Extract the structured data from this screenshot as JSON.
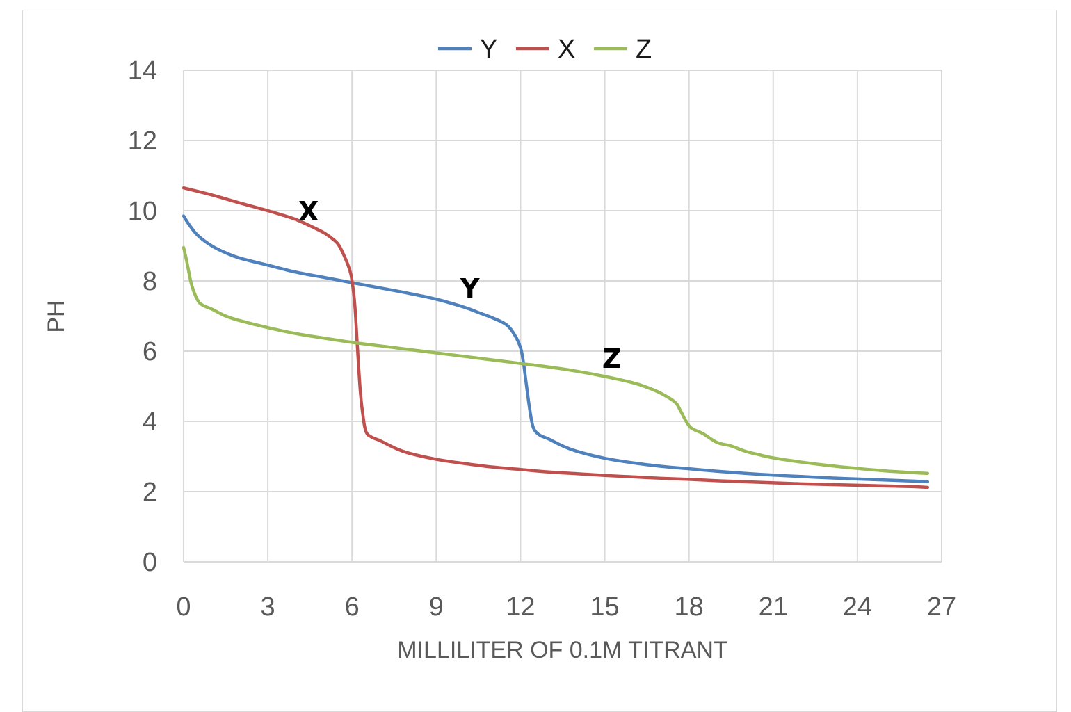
{
  "chart_data": {
    "type": "line",
    "title": "",
    "xlabel": "MILLILITER OF 0.1M TITRANT",
    "ylabel": "PH",
    "xlim": [
      0,
      27
    ],
    "ylim": [
      0,
      14
    ],
    "xticks": [
      0,
      3,
      6,
      9,
      12,
      15,
      18,
      21,
      24,
      27
    ],
    "yticks": [
      0,
      2,
      4,
      6,
      8,
      10,
      12,
      14
    ],
    "grid": true,
    "legend_position": "top-center",
    "series": [
      {
        "name": "Y",
        "color": "#4f81bd",
        "points": [
          [
            0,
            9.85
          ],
          [
            0.2,
            9.6
          ],
          [
            0.5,
            9.3
          ],
          [
            1,
            9.0
          ],
          [
            1.5,
            8.8
          ],
          [
            2,
            8.65
          ],
          [
            3,
            8.45
          ],
          [
            4,
            8.25
          ],
          [
            5,
            8.1
          ],
          [
            6,
            7.95
          ],
          [
            7,
            7.8
          ],
          [
            8,
            7.65
          ],
          [
            9,
            7.48
          ],
          [
            10,
            7.25
          ],
          [
            10.5,
            7.1
          ],
          [
            11,
            6.95
          ],
          [
            11.5,
            6.75
          ],
          [
            11.8,
            6.45
          ],
          [
            12,
            6.1
          ],
          [
            12.1,
            5.7
          ],
          [
            12.2,
            5.1
          ],
          [
            12.3,
            4.5
          ],
          [
            12.4,
            4.0
          ],
          [
            12.5,
            3.75
          ],
          [
            12.7,
            3.6
          ],
          [
            13,
            3.5
          ],
          [
            13.5,
            3.3
          ],
          [
            14,
            3.15
          ],
          [
            15,
            2.95
          ],
          [
            16,
            2.82
          ],
          [
            17,
            2.72
          ],
          [
            18,
            2.65
          ],
          [
            19,
            2.58
          ],
          [
            20,
            2.52
          ],
          [
            21,
            2.47
          ],
          [
            22,
            2.43
          ],
          [
            23,
            2.39
          ],
          [
            24,
            2.36
          ],
          [
            25,
            2.33
          ],
          [
            26,
            2.3
          ],
          [
            26.5,
            2.28
          ]
        ]
      },
      {
        "name": "X",
        "color": "#c0504d",
        "points": [
          [
            0,
            10.65
          ],
          [
            1,
            10.45
          ],
          [
            2,
            10.22
          ],
          [
            3,
            10.0
          ],
          [
            3.5,
            9.88
          ],
          [
            4,
            9.75
          ],
          [
            4.5,
            9.57
          ],
          [
            5,
            9.37
          ],
          [
            5.3,
            9.2
          ],
          [
            5.5,
            9.05
          ],
          [
            5.7,
            8.75
          ],
          [
            5.9,
            8.35
          ],
          [
            6.0,
            8.0
          ],
          [
            6.1,
            7.3
          ],
          [
            6.2,
            6.0
          ],
          [
            6.3,
            4.8
          ],
          [
            6.4,
            4.1
          ],
          [
            6.5,
            3.7
          ],
          [
            6.7,
            3.55
          ],
          [
            7,
            3.45
          ],
          [
            7.5,
            3.25
          ],
          [
            8,
            3.1
          ],
          [
            9,
            2.92
          ],
          [
            10,
            2.8
          ],
          [
            11,
            2.7
          ],
          [
            12,
            2.63
          ],
          [
            13,
            2.56
          ],
          [
            14,
            2.51
          ],
          [
            15,
            2.46
          ],
          [
            16,
            2.42
          ],
          [
            17,
            2.38
          ],
          [
            18,
            2.35
          ],
          [
            19,
            2.31
          ],
          [
            20,
            2.28
          ],
          [
            21,
            2.25
          ],
          [
            22,
            2.22
          ],
          [
            23,
            2.2
          ],
          [
            24,
            2.18
          ],
          [
            25,
            2.16
          ],
          [
            26,
            2.14
          ],
          [
            26.5,
            2.12
          ]
        ]
      },
      {
        "name": "Z",
        "color": "#9bbb59",
        "points": [
          [
            0,
            8.95
          ],
          [
            0.1,
            8.6
          ],
          [
            0.2,
            8.2
          ],
          [
            0.3,
            7.85
          ],
          [
            0.5,
            7.45
          ],
          [
            0.7,
            7.3
          ],
          [
            1,
            7.2
          ],
          [
            1.5,
            7.0
          ],
          [
            2,
            6.87
          ],
          [
            3,
            6.67
          ],
          [
            4,
            6.5
          ],
          [
            5,
            6.37
          ],
          [
            6,
            6.25
          ],
          [
            7,
            6.15
          ],
          [
            8,
            6.05
          ],
          [
            9,
            5.95
          ],
          [
            10,
            5.85
          ],
          [
            11,
            5.75
          ],
          [
            12,
            5.65
          ],
          [
            13,
            5.55
          ],
          [
            14,
            5.43
          ],
          [
            15,
            5.28
          ],
          [
            16,
            5.1
          ],
          [
            16.5,
            4.97
          ],
          [
            17,
            4.8
          ],
          [
            17.5,
            4.55
          ],
          [
            17.7,
            4.3
          ],
          [
            17.9,
            4.0
          ],
          [
            18.1,
            3.8
          ],
          [
            18.5,
            3.65
          ],
          [
            19,
            3.4
          ],
          [
            19.5,
            3.3
          ],
          [
            20,
            3.15
          ],
          [
            20.5,
            3.05
          ],
          [
            21,
            2.96
          ],
          [
            22,
            2.84
          ],
          [
            23,
            2.74
          ],
          [
            24,
            2.66
          ],
          [
            25,
            2.59
          ],
          [
            26,
            2.54
          ],
          [
            26.5,
            2.52
          ]
        ]
      }
    ],
    "annotations": [
      {
        "text": "X",
        "x": 4.45,
        "y": 10.0
      },
      {
        "text": "Y",
        "x": 10.2,
        "y": 7.8
      },
      {
        "text": "Z",
        "x": 15.25,
        "y": 5.8
      }
    ]
  }
}
